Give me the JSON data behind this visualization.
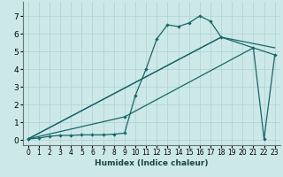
{
  "xlabel": "Humidex (Indice chaleur)",
  "xlim": [
    -0.5,
    23.5
  ],
  "ylim": [
    -0.3,
    7.8
  ],
  "yticks": [
    0,
    1,
    2,
    3,
    4,
    5,
    6,
    7
  ],
  "xticks": [
    0,
    1,
    2,
    3,
    4,
    5,
    6,
    7,
    8,
    9,
    10,
    11,
    12,
    13,
    14,
    15,
    16,
    17,
    18,
    19,
    20,
    21,
    22,
    23
  ],
  "bg_color": "#cce8e8",
  "grid_color": "#b0d0d0",
  "line_color": "#1a6666",
  "curve1_x": [
    0,
    1,
    2,
    3,
    4,
    5,
    6,
    7,
    8,
    9,
    10,
    11,
    12,
    13,
    14,
    15,
    16,
    17,
    18
  ],
  "curve1_y": [
    0.05,
    0.1,
    0.2,
    0.25,
    0.25,
    0.28,
    0.28,
    0.28,
    0.32,
    0.38,
    2.5,
    4.0,
    5.7,
    6.5,
    6.4,
    6.6,
    7.0,
    6.7,
    5.8
  ],
  "line2_x": [
    0,
    18,
    23
  ],
  "line2_y": [
    0.05,
    5.8,
    5.2
  ],
  "line3_x": [
    0,
    18,
    23
  ],
  "line3_y": [
    0.05,
    5.8,
    4.8
  ],
  "curve4_x": [
    0,
    9,
    21,
    22,
    23
  ],
  "curve4_y": [
    0.05,
    1.3,
    5.2,
    0.05,
    4.8
  ]
}
